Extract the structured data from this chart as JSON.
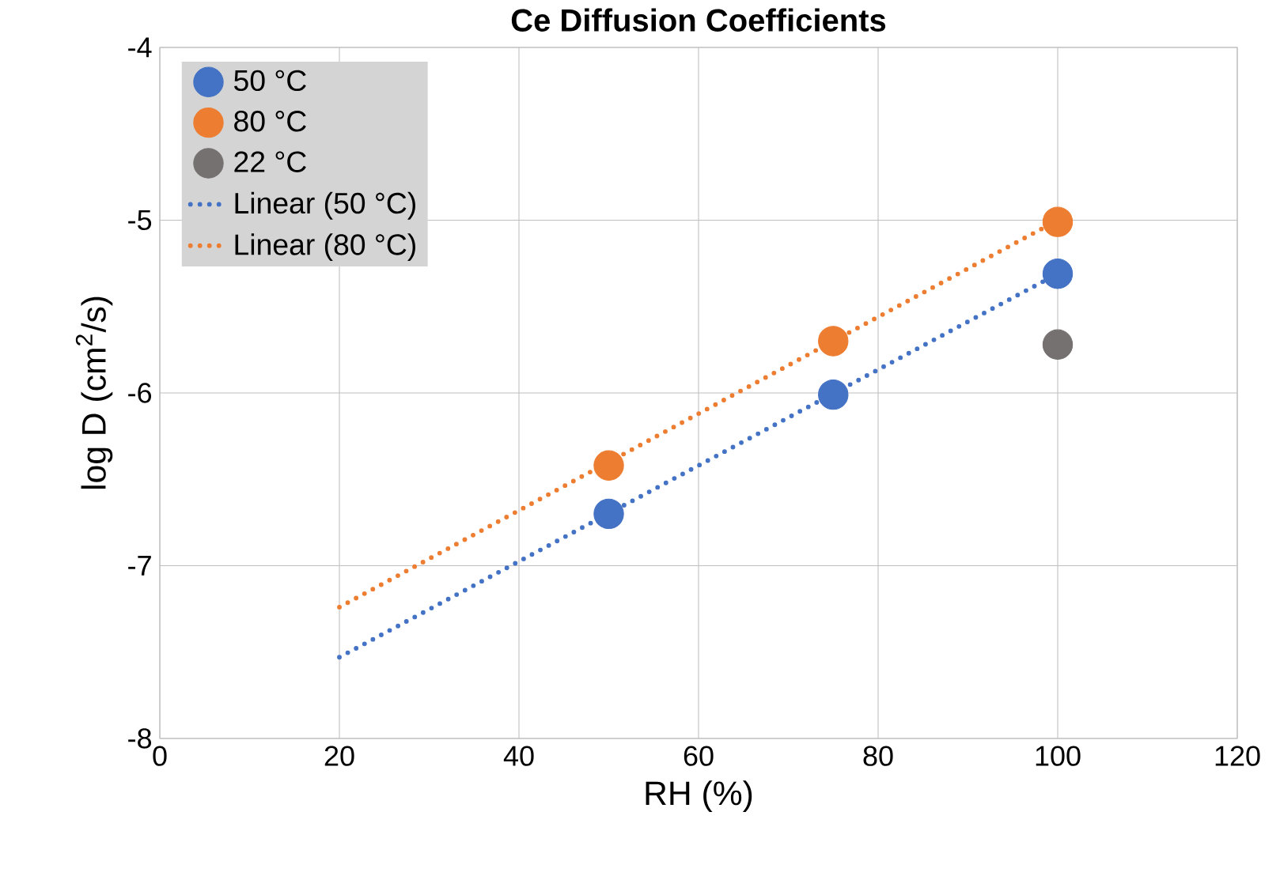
{
  "chart_data": {
    "type": "scatter",
    "title": "Ce Diffusion Coefficients",
    "xlabel": "RH (%)",
    "ylabel": "log D (cm$^{2}$/s)",
    "xlim": [
      0,
      120
    ],
    "ylim": [
      -8,
      -4
    ],
    "xticks": [
      0,
      20,
      40,
      60,
      80,
      100,
      120
    ],
    "yticks": [
      -8,
      -7,
      -6,
      -5,
      -4
    ],
    "grid": true,
    "legend": "top left",
    "marker": "circle",
    "series": [
      {
        "name": "50 °C",
        "color": "#4472c4",
        "x": [
          50,
          75,
          100
        ],
        "values": [
          -6.7,
          -6.01,
          -5.31
        ]
      },
      {
        "name": "80 °C",
        "color": "#ed7d31",
        "x": [
          50,
          75,
          100
        ],
        "values": [
          -6.42,
          -5.7,
          -5.01
        ]
      },
      {
        "name": "22 °C",
        "color": "#767171",
        "x": [
          100
        ],
        "values": [
          -5.72
        ]
      },
      {
        "name": "Linear (50 °C)",
        "type": "line",
        "line_style": "dotted",
        "marker": "none",
        "color": "#4472c4",
        "x": [
          20,
          100
        ],
        "values": [
          -7.53,
          -5.31
        ]
      },
      {
        "name": "Linear (80 °C)",
        "type": "line",
        "line_style": "dotted",
        "marker": "none",
        "color": "#ed7d31",
        "x": [
          20,
          100
        ],
        "values": [
          -7.24,
          -5.0
        ]
      }
    ]
  }
}
